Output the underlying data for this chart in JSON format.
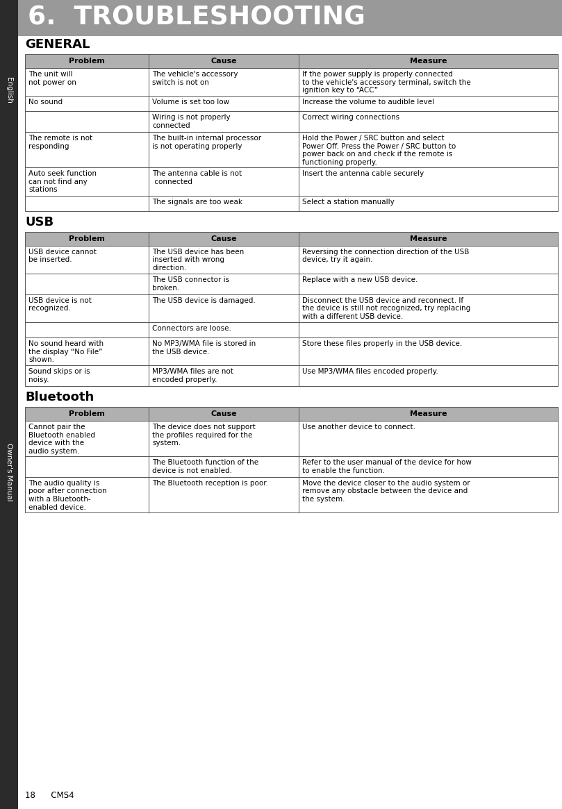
{
  "title": "6.  TROUBLESHOOTING",
  "title_bg": "#999999",
  "title_color": "#ffffff",
  "sidebar_bg": "#2b2b2b",
  "page_bg": "#ffffff",
  "header_bg": "#b0b0b0",
  "table_border_color": "#555555",
  "section_general": "GENERAL",
  "section_usb": "USB",
  "section_bluetooth": "Bluetooth",
  "footer_text": "18      CMS4",
  "general_rows": [
    {
      "problem": "The unit will\nnot power on",
      "cause": "The vehicle's accessory\nswitch is not on",
      "measure": "If the power supply is properly connected\nto the vehicle's accessory terminal, switch the\nignition key to “ACC”"
    },
    {
      "problem": "No sound",
      "cause": "Volume is set too low",
      "measure": "Increase the volume to audible level"
    },
    {
      "problem": "",
      "cause": "Wiring is not properly\nconnected",
      "measure": "Correct wiring connections"
    },
    {
      "problem": "The remote is not\nresponding",
      "cause": "The built-in internal processor\nis not operating properly",
      "measure": "Hold the Power / SRC button and select\nPower Off. Press the Power / SRC button to\npower back on and check if the remote is\nfunctioning properly."
    },
    {
      "problem": "Auto seek function\ncan not find any\nstations",
      "cause": "The antenna cable is not\n connected",
      "measure": "Insert the antenna cable securely"
    },
    {
      "problem": "",
      "cause": "The signals are too weak",
      "measure": "Select a station manually"
    }
  ],
  "usb_rows": [
    {
      "problem": "USB device cannot\nbe inserted.",
      "cause": "The USB device has been\ninserted with wrong\ndirection.",
      "measure": "Reversing the connection direction of the USB\ndevice, try it again."
    },
    {
      "problem": "",
      "cause": "The USB connector is\nbroken.",
      "measure": "Replace with a new USB device."
    },
    {
      "problem": "USB device is not\nrecognized.",
      "cause": "The USB device is damaged.",
      "measure": "Disconnect the USB device and reconnect. If\nthe device is still not recognized, try replacing\nwith a different USB device."
    },
    {
      "problem": "",
      "cause": "Connectors are loose.",
      "measure": ""
    },
    {
      "problem": "No sound heard with\nthe display “No File”\nshown.",
      "cause": "No MP3/WMA file is stored in\nthe USB device.",
      "measure": "Store these files properly in the USB device."
    },
    {
      "problem": "Sound skips or is\nnoisy.",
      "cause": "MP3/WMA files are not\nencoded properly.",
      "measure": "Use MP3/WMA files encoded properly."
    }
  ],
  "bluetooth_rows": [
    {
      "problem": "Cannot pair the\nBluetooth enabled\ndevice with the\naudio system.",
      "cause": "The device does not support\nthe profiles required for the\nsystem.",
      "measure": "Use another device to connect."
    },
    {
      "problem": "",
      "cause": "The Bluetooth function of the\ndevice is not enabled.",
      "measure": "Refer to the user manual of the device for how\nto enable the function."
    },
    {
      "problem": "The audio quality is\npoor after connection\nwith a Bluetooth-\nenabled device.",
      "cause": "The Bluetooth reception is poor.",
      "measure": "Move the device closer to the audio system or\nremove any obstacle between the device and\nthe system."
    }
  ]
}
